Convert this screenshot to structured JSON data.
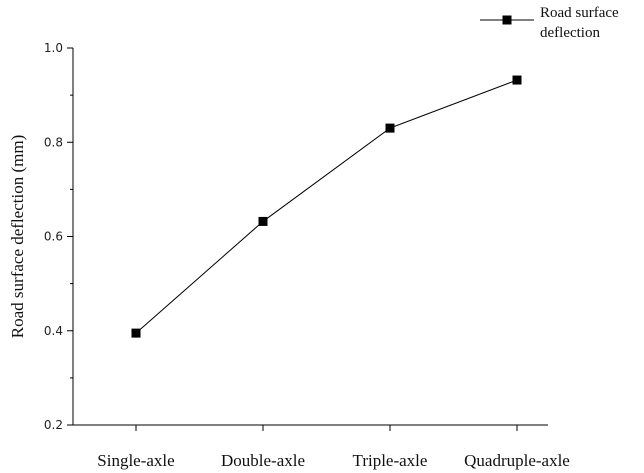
{
  "chart_data": {
    "type": "line",
    "categories": [
      "Single-axle",
      "Double-axle",
      "Triple-axle",
      "Quadruple-axle"
    ],
    "series": [
      {
        "name": "Road surface deflection",
        "values": [
          0.395,
          0.632,
          0.83,
          0.932
        ],
        "color": "#000000",
        "marker": "square"
      }
    ],
    "title": "",
    "xlabel": "",
    "ylabel": "Road surface deflection (mm)",
    "ylim": [
      0.2,
      1.0
    ],
    "yticks": [
      0.2,
      0.4,
      0.6,
      0.8,
      1.0
    ],
    "ytick_labels": [
      "0.2",
      "0.4",
      "0.6",
      "0.8",
      "1.0"
    ],
    "grid": false,
    "legend": {
      "position": "top-right",
      "label_lines": [
        "Road surface",
        "deflection"
      ]
    }
  }
}
